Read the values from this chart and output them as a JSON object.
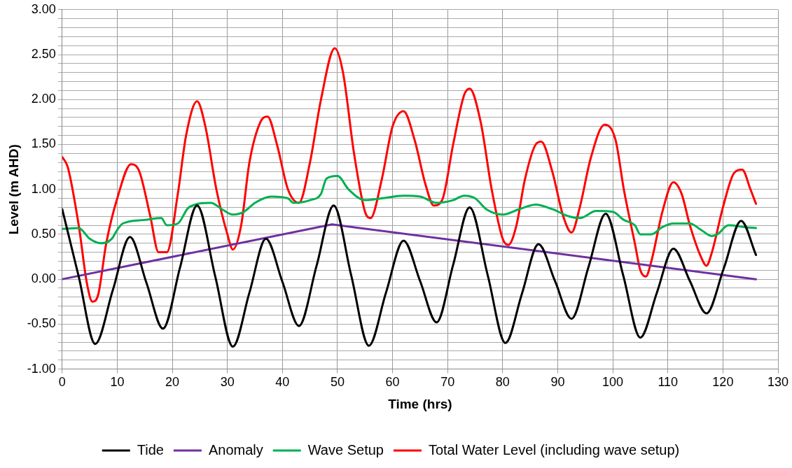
{
  "chart_data": {
    "type": "line",
    "xlabel": "Time (hrs)",
    "ylabel": "Level (m AHD)",
    "xlim": [
      0,
      130
    ],
    "xticks": [
      0,
      10,
      20,
      30,
      40,
      50,
      60,
      70,
      80,
      90,
      100,
      110,
      120,
      130
    ],
    "ylim": [
      -1,
      3
    ],
    "yticks": [
      {
        "value": -1,
        "label": "-1.00"
      },
      {
        "value": -0.9,
        "label": null
      },
      {
        "value": -0.8,
        "label": null
      },
      {
        "value": -0.7,
        "label": null
      },
      {
        "value": -0.6,
        "label": null
      },
      {
        "value": -0.5,
        "label": "-0.50"
      },
      {
        "value": -0.4,
        "label": null
      },
      {
        "value": -0.3,
        "label": null
      },
      {
        "value": -0.2,
        "label": null
      },
      {
        "value": -0.1,
        "label": null
      },
      {
        "value": 0,
        "label": "0.00"
      },
      {
        "value": 0.1,
        "label": null
      },
      {
        "value": 0.2,
        "label": null
      },
      {
        "value": 0.3,
        "label": null
      },
      {
        "value": 0.4,
        "label": null
      },
      {
        "value": 0.5,
        "label": "0.50"
      },
      {
        "value": 0.6,
        "label": null
      },
      {
        "value": 0.7,
        "label": null
      },
      {
        "value": 0.8,
        "label": null
      },
      {
        "value": 0.9,
        "label": null
      },
      {
        "value": 1,
        "label": "1.00"
      },
      {
        "value": 1.1,
        "label": null
      },
      {
        "value": 1.2,
        "label": null
      },
      {
        "value": 1.3,
        "label": null
      },
      {
        "value": 1.4,
        "label": null
      },
      {
        "value": 1.5,
        "label": "1.50"
      },
      {
        "value": 1.6,
        "label": null
      },
      {
        "value": 1.7,
        "label": null
      },
      {
        "value": 1.8,
        "label": null
      },
      {
        "value": 1.9,
        "label": null
      },
      {
        "value": 2,
        "label": "2.00"
      },
      {
        "value": 2.1,
        "label": null
      },
      {
        "value": 2.2,
        "label": null
      },
      {
        "value": 2.3,
        "label": null
      },
      {
        "value": 2.4,
        "label": null
      },
      {
        "value": 2.5,
        "label": "2.50"
      },
      {
        "value": 2.6,
        "label": null
      },
      {
        "value": 2.7,
        "label": null
      },
      {
        "value": 2.8,
        "label": null
      },
      {
        "value": 2.9,
        "label": null
      },
      {
        "value": 3,
        "label": "3.00"
      }
    ],
    "grid": true,
    "legend": "bottom",
    "marker": "none",
    "line_style": "solid",
    "series": [
      {
        "name": "Tide",
        "color": "#000000",
        "x": [
          0,
          3,
          6,
          9.2,
          12.3,
          15.3,
          18.3,
          21.4,
          24.5,
          27.8,
          31,
          34,
          37,
          40,
          43,
          46.2,
          49.3,
          52.5,
          55.7,
          58.8,
          62,
          65,
          68,
          71,
          74,
          77.3,
          80.5,
          83.5,
          86.5,
          89.5,
          92.5,
          95.6,
          98.7,
          101.9,
          105,
          108,
          111,
          114,
          117,
          120.2,
          123.3,
          126
        ],
        "values": [
          0.78,
          0.03,
          -0.72,
          -0.12,
          0.47,
          -0.04,
          -0.55,
          0.13,
          0.82,
          0.03,
          -0.75,
          -0.15,
          0.45,
          -0.03,
          -0.52,
          0.15,
          0.82,
          0.04,
          -0.74,
          -0.15,
          0.43,
          -0.02,
          -0.48,
          0.16,
          0.8,
          0.04,
          -0.71,
          -0.16,
          0.39,
          -0.02,
          -0.44,
          0.14,
          0.73,
          0.04,
          -0.65,
          -0.15,
          0.34,
          -0.02,
          -0.38,
          0.13,
          0.65,
          0.27
        ]
      },
      {
        "name": "Anomaly",
        "color": "#7030a0",
        "x": [
          0,
          49,
          126
        ],
        "values": [
          0,
          0.61,
          0
        ]
      },
      {
        "name": "Wave Setup",
        "color": "#00b050",
        "x": [
          0,
          3,
          5,
          7,
          9,
          10,
          11,
          15,
          18,
          19,
          21,
          23,
          27,
          29,
          31,
          33,
          35,
          38,
          41,
          42,
          45,
          47,
          48,
          50,
          52,
          55,
          58,
          62,
          65,
          68,
          71,
          73,
          75,
          77,
          80,
          83,
          86,
          89,
          92,
          94,
          97,
          100,
          102,
          104,
          105,
          107,
          109,
          111,
          114,
          116,
          118,
          119,
          121,
          124,
          126
        ],
        "values": [
          0.56,
          0.57,
          0.45,
          0.4,
          0.45,
          0.55,
          0.62,
          0.66,
          0.68,
          0.6,
          0.62,
          0.8,
          0.85,
          0.78,
          0.72,
          0.75,
          0.85,
          0.92,
          0.9,
          0.85,
          0.88,
          0.95,
          1.12,
          1.15,
          1,
          0.88,
          0.9,
          0.93,
          0.92,
          0.85,
          0.88,
          0.93,
          0.9,
          0.78,
          0.72,
          0.78,
          0.83,
          0.78,
          0.7,
          0.68,
          0.76,
          0.75,
          0.66,
          0.6,
          0.5,
          0.5,
          0.58,
          0.62,
          0.62,
          0.55,
          0.48,
          0.5,
          0.6,
          0.58,
          0.57
        ]
      },
      {
        "name": "Total Water Level (including wave setup)",
        "color": "#ff0000",
        "x": [
          0,
          1,
          3,
          4.5,
          5.5,
          6.5,
          8,
          10,
          12.5,
          14,
          16,
          17.5,
          19,
          21,
          22.5,
          24.5,
          26,
          28,
          30,
          31,
          32.5,
          34,
          36,
          37.3,
          39,
          41,
          43,
          45,
          47,
          49.5,
          51,
          53,
          55,
          56,
          58,
          60,
          62,
          64,
          66,
          67.5,
          69,
          71,
          73,
          74,
          76,
          78,
          80,
          81,
          82.5,
          84,
          86,
          87,
          89,
          91,
          92.5,
          94,
          96,
          98.5,
          100.5,
          102,
          104,
          105,
          106,
          107,
          109,
          111,
          112.5,
          114,
          116,
          117,
          118,
          120,
          122,
          123.5,
          125,
          126
        ],
        "values": [
          1.36,
          1.25,
          0.6,
          -0.05,
          -0.25,
          -0.18,
          0.4,
          0.9,
          1.28,
          1.2,
          0.7,
          0.3,
          0.3,
          0.95,
          1.6,
          1.98,
          1.7,
          1,
          0.5,
          0.33,
          0.6,
          1.3,
          1.75,
          1.81,
          1.5,
          1,
          0.85,
          1.3,
          2,
          2.57,
          2.3,
          1.4,
          0.75,
          0.68,
          1.1,
          1.7,
          1.87,
          1.55,
          1.05,
          0.82,
          0.88,
          1.5,
          2.05,
          2.12,
          1.75,
          1,
          0.45,
          0.38,
          0.6,
          1.1,
          1.5,
          1.53,
          1.2,
          0.7,
          0.52,
          0.8,
          1.35,
          1.72,
          1.55,
          1,
          0.4,
          0.1,
          0.03,
          0.2,
          0.75,
          1.08,
          0.95,
          0.6,
          0.25,
          0.15,
          0.3,
          0.8,
          1.18,
          1.22,
          1,
          0.84
        ]
      }
    ]
  }
}
